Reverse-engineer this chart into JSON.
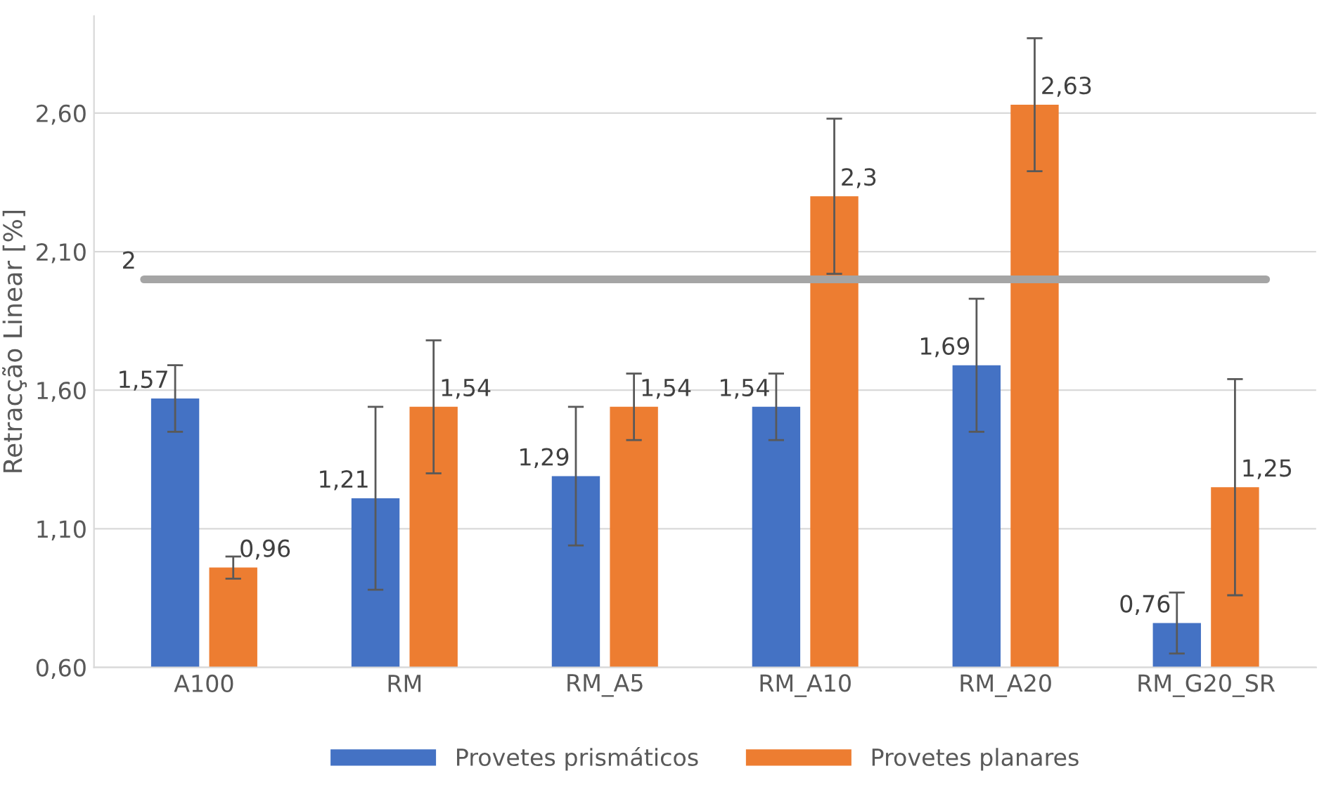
{
  "chart_data": {
    "type": "bar",
    "ylabel": "Retracção Linear [%]",
    "categories": [
      "A100",
      "RM",
      "RM_A5",
      "RM_A10",
      "RM_A20",
      "RM_G20_SR"
    ],
    "series": [
      {
        "name": "Provetes prismáticos",
        "color": "#4472c4",
        "values": [
          1.57,
          1.21,
          1.29,
          1.54,
          1.69,
          0.76
        ],
        "errors": [
          0.12,
          0.33,
          0.25,
          0.12,
          0.24,
          0.11
        ],
        "value_labels": [
          "1,57",
          "1,21",
          "1,29",
          "1,54",
          "1,69",
          "0,76"
        ]
      },
      {
        "name": "Provetes planares",
        "color": "#ed7d31",
        "values": [
          0.96,
          1.54,
          1.54,
          2.3,
          2.63,
          1.25
        ],
        "errors": [
          0.04,
          0.24,
          0.12,
          0.28,
          0.24,
          0.39
        ],
        "value_labels": [
          "0,96",
          "1,54",
          "1,54",
          "2,3",
          "2,63",
          "1,25"
        ]
      }
    ],
    "ylim": [
      0.6,
      2.95
    ],
    "yticks": [
      {
        "value": 0.6,
        "label": "0,60"
      },
      {
        "value": 1.1,
        "label": "1,10"
      },
      {
        "value": 1.6,
        "label": "1,60"
      },
      {
        "value": 2.1,
        "label": "2,10"
      },
      {
        "value": 2.6,
        "label": "2,60"
      }
    ],
    "ref_lines": [
      {
        "axis": "y",
        "value": 2,
        "label": "2",
        "color": "#a5a5a5"
      }
    ],
    "grid": "y",
    "legend": "bottom"
  }
}
